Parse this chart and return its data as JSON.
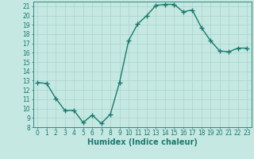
{
  "x": [
    0,
    1,
    2,
    3,
    4,
    5,
    6,
    7,
    8,
    9,
    10,
    11,
    12,
    13,
    14,
    15,
    16,
    17,
    18,
    19,
    20,
    21,
    22,
    23
  ],
  "y": [
    12.8,
    12.7,
    11.1,
    9.8,
    9.8,
    8.5,
    9.3,
    8.4,
    9.4,
    12.8,
    17.3,
    19.1,
    20.0,
    21.1,
    21.2,
    21.2,
    20.4,
    20.6,
    18.7,
    17.3,
    16.2,
    16.1,
    16.5,
    16.5
  ],
  "line_color": "#1a7a6e",
  "marker": "+",
  "markersize": 4,
  "markeredgewidth": 1.0,
  "linewidth": 1.0,
  "background_color": "#c5e8e2",
  "grid_color": "#a8d5cc",
  "xlabel": "Humidex (Indice chaleur)",
  "xlim": [
    -0.5,
    23.5
  ],
  "ylim": [
    8,
    21.5
  ],
  "yticks": [
    8,
    9,
    10,
    11,
    12,
    13,
    14,
    15,
    16,
    17,
    18,
    19,
    20,
    21
  ],
  "xticks": [
    0,
    1,
    2,
    3,
    4,
    5,
    6,
    7,
    8,
    9,
    10,
    11,
    12,
    13,
    14,
    15,
    16,
    17,
    18,
    19,
    20,
    21,
    22,
    23
  ],
  "tick_fontsize": 5.5,
  "xlabel_fontsize": 7.0,
  "tick_color": "#1a7a6e",
  "xlabel_color": "#1a7a6e",
  "spine_color": "#1a7a6e"
}
